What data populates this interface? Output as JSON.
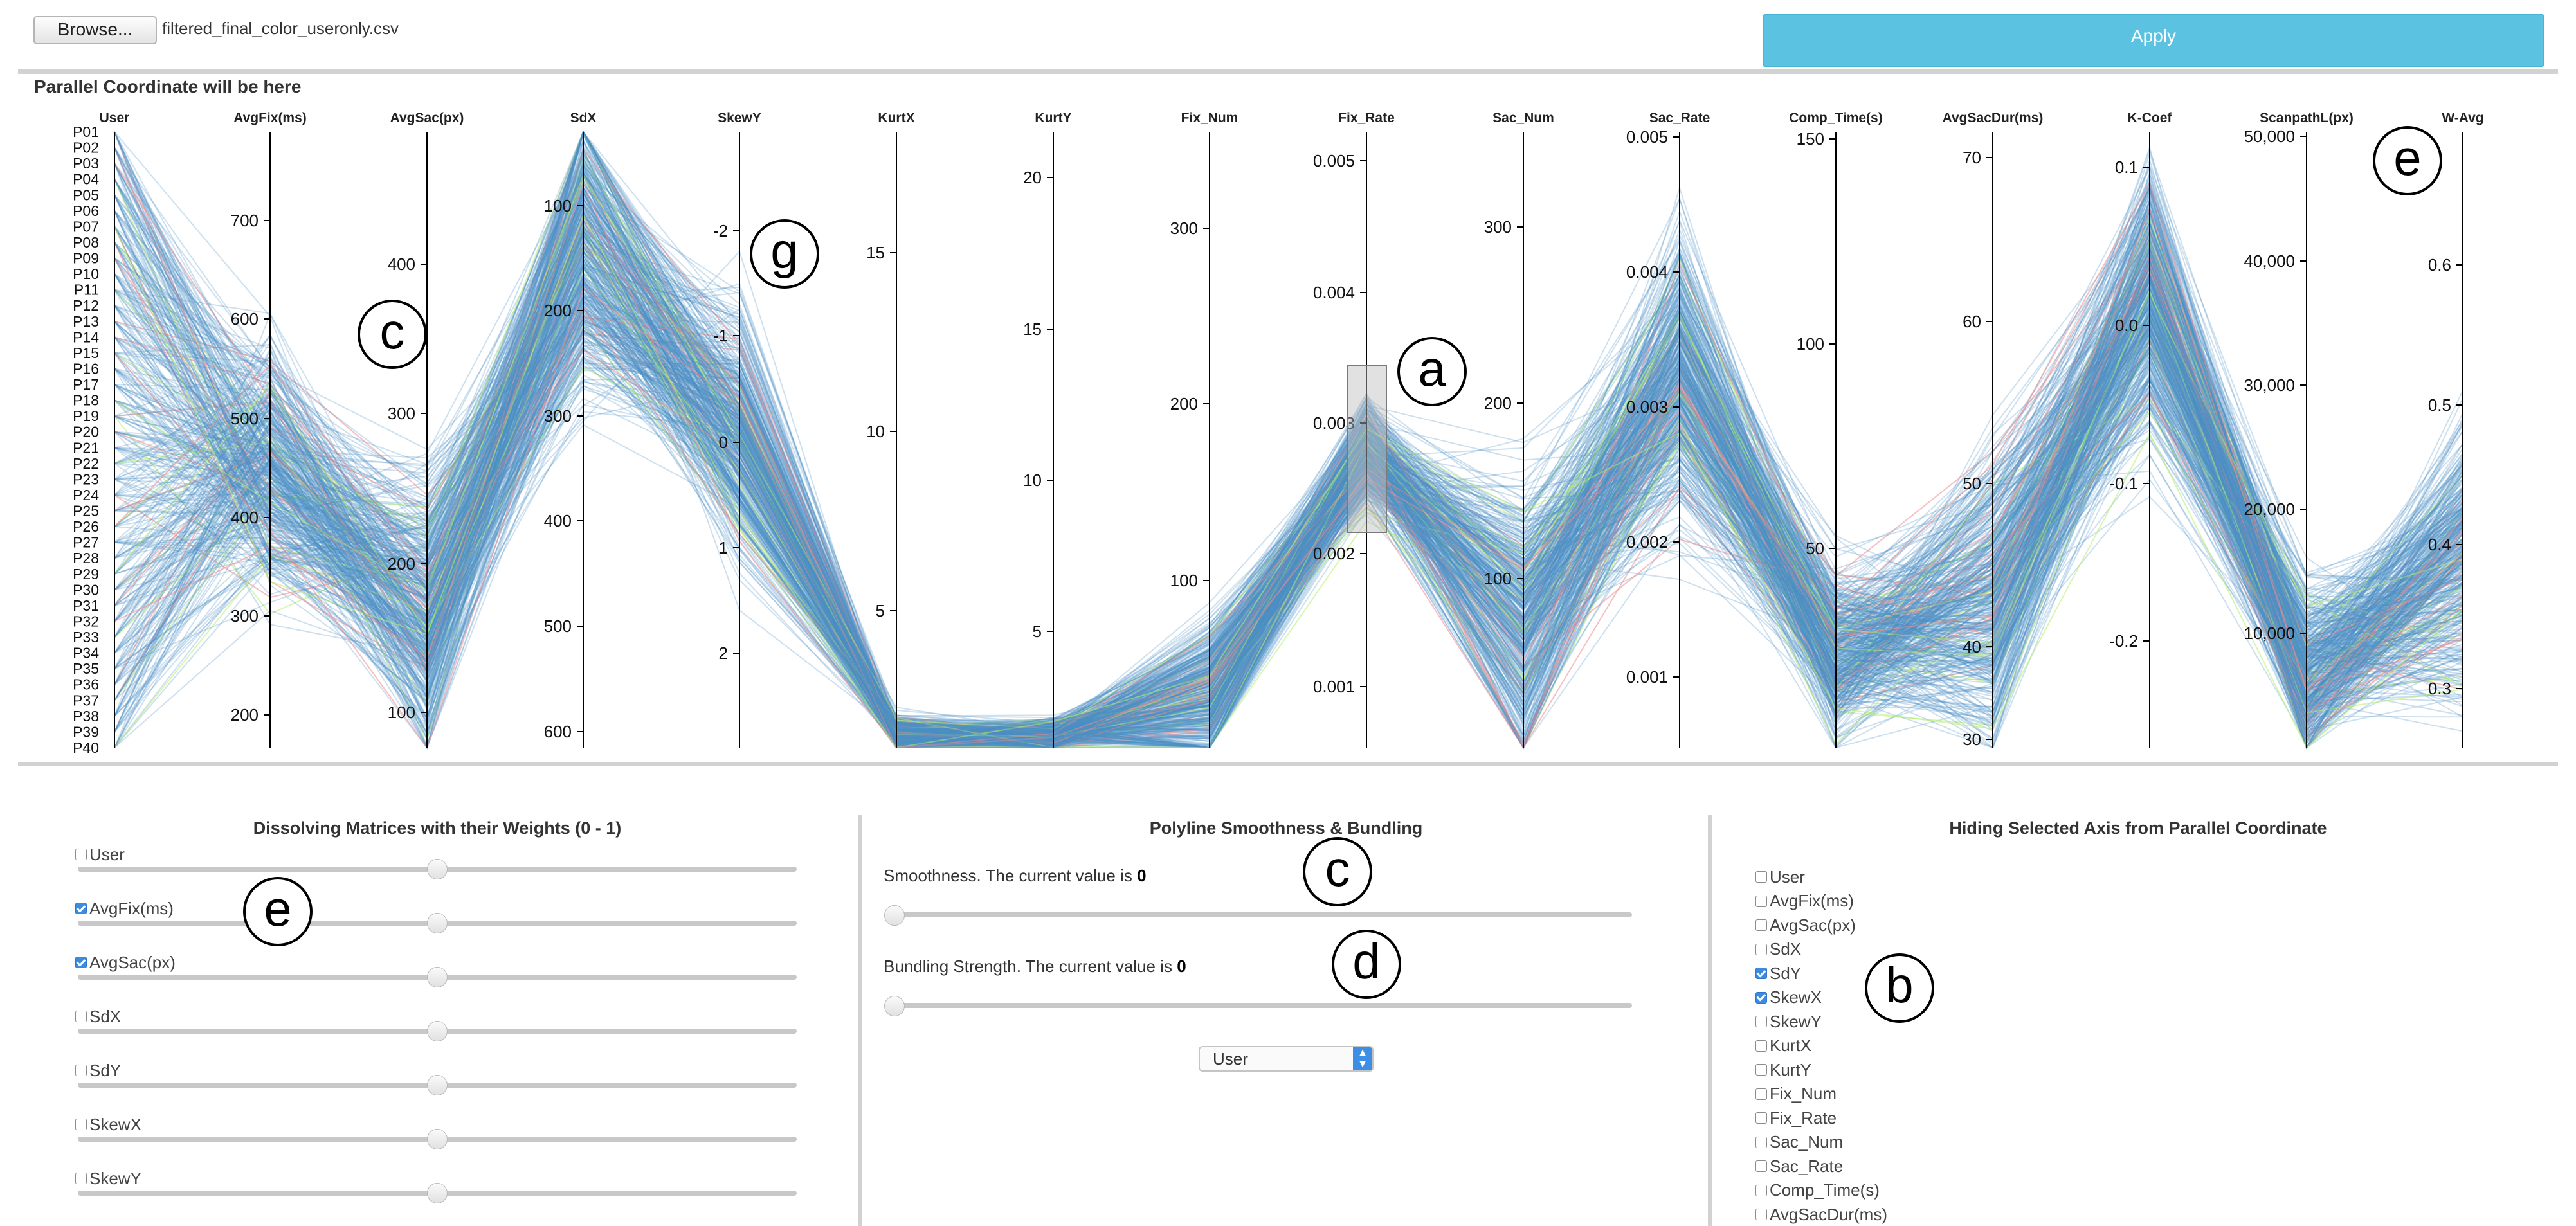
{
  "file_bar": {
    "browse_label": "Browse...",
    "filename": "filtered_final_color_useronly.csv",
    "apply_label": "Apply"
  },
  "parallel_coordinates": {
    "title": "Parallel Coordinate will be here",
    "colors": {
      "line": "#4c8fc7",
      "highlight_red": "#f08a8a",
      "highlight_green": "#b7ef6c"
    },
    "axes": [
      {
        "name": "User",
        "ticks": [
          "P01",
          "P02",
          "P03",
          "P04",
          "P05",
          "P06",
          "P07",
          "P08",
          "P09",
          "P10",
          "P11",
          "P12",
          "P13",
          "P14",
          "P15",
          "P16",
          "P17",
          "P18",
          "P19",
          "P20",
          "P21",
          "P22",
          "P23",
          "P24",
          "P25",
          "P26",
          "P27",
          "P28",
          "P29",
          "P30",
          "P31",
          "P32",
          "P33",
          "P34",
          "P35",
          "P36",
          "P37",
          "P38",
          "P39",
          "P40"
        ]
      },
      {
        "name": "AvgFix(ms)",
        "ticks": [
          "700",
          "600",
          "500",
          "400",
          "300",
          "200"
        ]
      },
      {
        "name": "AvgSac(px)",
        "ticks": [
          "400",
          "300",
          "200",
          "100"
        ]
      },
      {
        "name": "SdX",
        "ticks": [
          "100",
          "200",
          "300",
          "400",
          "500",
          "600"
        ]
      },
      {
        "name": "SkewY",
        "ticks": [
          "-2",
          "-1",
          "0",
          "1",
          "2"
        ]
      },
      {
        "name": "KurtX",
        "ticks": [
          "15",
          "10",
          "5"
        ]
      },
      {
        "name": "KurtY",
        "ticks": [
          "20",
          "15",
          "10",
          "5"
        ]
      },
      {
        "name": "Fix_Num",
        "ticks": [
          "300",
          "200",
          "100"
        ]
      },
      {
        "name": "Fix_Rate",
        "ticks": [
          "0.005",
          "0.004",
          "0.003",
          "0.002",
          "0.001"
        ]
      },
      {
        "name": "Sac_Num",
        "ticks": [
          "300",
          "200",
          "100"
        ]
      },
      {
        "name": "Sac_Rate",
        "ticks": [
          "0.005",
          "0.004",
          "0.003",
          "0.002",
          "0.001"
        ]
      },
      {
        "name": "Comp_Time(s)",
        "ticks": [
          "150",
          "100",
          "50"
        ]
      },
      {
        "name": "AvgSacDur(ms)",
        "ticks": [
          "70",
          "60",
          "50",
          "40",
          "30"
        ]
      },
      {
        "name": "K-Coef",
        "ticks": [
          "0.1",
          "0.0",
          "-0.1",
          "-0.2"
        ]
      },
      {
        "name": "ScanpathL(px)",
        "ticks": [
          "50,000",
          "40,000",
          "30,000",
          "20,000",
          "10,000"
        ]
      },
      {
        "name": "W-Avg",
        "ticks": [
          "0.6",
          "0.5",
          "0.4",
          "0.3"
        ]
      }
    ],
    "brush_axis": "Fix_Rate",
    "callouts": {
      "a": "a",
      "c": "c",
      "e": "e",
      "g": "g"
    }
  },
  "dissolve_panel": {
    "title": "Dissolving Matrices with their Weights (0 - 1)",
    "callout": "e",
    "items": [
      {
        "label": "User",
        "checked": false,
        "weight": 0.5
      },
      {
        "label": "AvgFix(ms)",
        "checked": true,
        "weight": 0.5
      },
      {
        "label": "AvgSac(px)",
        "checked": true,
        "weight": 0.5
      },
      {
        "label": "SdX",
        "checked": false,
        "weight": 0.5
      },
      {
        "label": "SdY",
        "checked": false,
        "weight": 0.5
      },
      {
        "label": "SkewX",
        "checked": false,
        "weight": 0.5
      },
      {
        "label": "SkewY",
        "checked": false,
        "weight": 0.5
      }
    ]
  },
  "smooth_panel": {
    "title": "Polyline Smoothness & Bundling",
    "smoothness_label": "Smoothness. The current value is ",
    "smoothness_value": "0",
    "bundling_label": "Bundling Strength. The current value is ",
    "bundling_value": "0",
    "select_value": "User",
    "callout_c": "c",
    "callout_d": "d"
  },
  "hide_panel": {
    "title": "Hiding Selected Axis from Parallel Coordinate",
    "callout": "b",
    "items": [
      {
        "label": "User",
        "checked": false
      },
      {
        "label": "AvgFix(ms)",
        "checked": false
      },
      {
        "label": "AvgSac(px)",
        "checked": false
      },
      {
        "label": "SdX",
        "checked": false
      },
      {
        "label": "SdY",
        "checked": true
      },
      {
        "label": "SkewX",
        "checked": true
      },
      {
        "label": "SkewY",
        "checked": false
      },
      {
        "label": "KurtX",
        "checked": false
      },
      {
        "label": "KurtY",
        "checked": false
      },
      {
        "label": "Fix_Num",
        "checked": false
      },
      {
        "label": "Fix_Rate",
        "checked": false
      },
      {
        "label": "Sac_Num",
        "checked": false
      },
      {
        "label": "Sac_Rate",
        "checked": false
      },
      {
        "label": "Comp_Time(s)",
        "checked": false
      },
      {
        "label": "AvgSacDur(ms)",
        "checked": false
      }
    ]
  }
}
